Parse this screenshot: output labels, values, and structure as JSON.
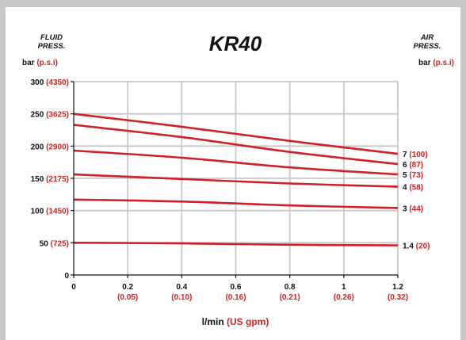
{
  "chart_data": {
    "type": "line",
    "title": "KR40",
    "left_axis_header": [
      "FLUID",
      "PRESS."
    ],
    "right_axis_header": [
      "AIR",
      "PRESS."
    ],
    "left_unit": {
      "main": "bar",
      "alt": "(p.s.i)"
    },
    "right_unit": {
      "main": "bar",
      "alt": "(p.s.i)"
    },
    "xlabel": {
      "main": "l/min",
      "alt": "(US gpm)"
    },
    "xlim": [
      0,
      1.2
    ],
    "ylim": [
      0,
      300
    ],
    "grid": true,
    "x_ticks": [
      {
        "value": 0,
        "label": "0",
        "alt": ""
      },
      {
        "value": 0.2,
        "label": "0.2",
        "alt": "(0.05)"
      },
      {
        "value": 0.4,
        "label": "0.4",
        "alt": "(0.10)"
      },
      {
        "value": 0.6,
        "label": "0.6",
        "alt": "(0.16)"
      },
      {
        "value": 0.8,
        "label": "0.8",
        "alt": "(0.21)"
      },
      {
        "value": 1.0,
        "label": "1",
        "alt": "(0.26)"
      },
      {
        "value": 1.2,
        "label": "1.2",
        "alt": "(0.32)"
      }
    ],
    "y_ticks": [
      {
        "value": 0,
        "label": "0",
        "alt": ""
      },
      {
        "value": 50,
        "label": "50",
        "alt": "(725)"
      },
      {
        "value": 100,
        "label": "100",
        "alt": "(1450)"
      },
      {
        "value": 150,
        "label": "150",
        "alt": "(2175)"
      },
      {
        "value": 200,
        "label": "200",
        "alt": "(2900)"
      },
      {
        "value": 250,
        "label": "250",
        "alt": "(3625)"
      },
      {
        "value": 300,
        "label": "300",
        "alt": "(4350)"
      }
    ],
    "series": [
      {
        "label": "7",
        "alt": "(100)",
        "x": [
          0,
          0.4,
          0.8,
          1.2
        ],
        "y": [
          250,
          230,
          208,
          188
        ]
      },
      {
        "label": "6",
        "alt": "(87)",
        "x": [
          0,
          0.4,
          0.8,
          1.2
        ],
        "y": [
          233,
          214,
          191,
          172
        ]
      },
      {
        "label": "5",
        "alt": "(73)",
        "x": [
          0,
          0.4,
          0.8,
          1.2
        ],
        "y": [
          193,
          182,
          167,
          156
        ]
      },
      {
        "label": "4",
        "alt": "(58)",
        "x": [
          0,
          0.4,
          0.8,
          1.2
        ],
        "y": [
          156,
          149,
          142,
          137
        ]
      },
      {
        "label": "3",
        "alt": "(44)",
        "x": [
          0,
          0.4,
          0.8,
          1.2
        ],
        "y": [
          117,
          114,
          108,
          104
        ]
      },
      {
        "label": "1.4",
        "alt": "(20)",
        "x": [
          0,
          0.4,
          0.8,
          1.2
        ],
        "y": [
          50,
          49,
          47,
          46
        ]
      }
    ]
  }
}
